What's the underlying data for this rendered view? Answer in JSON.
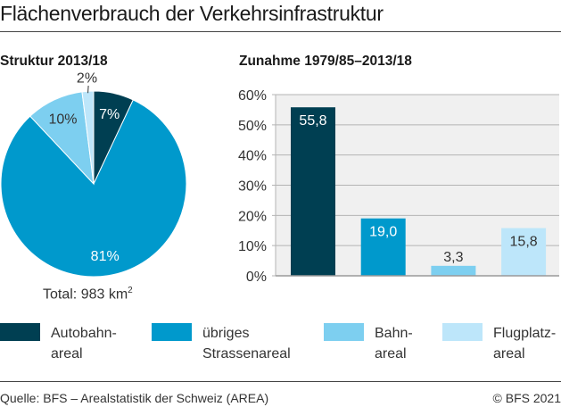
{
  "title": "Flächenverbrauch der Verkehrsinfrastruktur",
  "colors": {
    "autobahn": "#003f52",
    "strasse": "#0099cc",
    "bahn": "#7dcff0",
    "flugplatz": "#bde6fa",
    "plot_bg": "#f0f0f0",
    "grid": "#b4b4b4"
  },
  "chart_data": [
    {
      "type": "pie",
      "title": "Struktur 2013/18",
      "categories": [
        "Autobahnareal",
        "übriges Strassenareal",
        "Bahnareal",
        "Flugplatzareal"
      ],
      "values": [
        7,
        81,
        10,
        2
      ],
      "labels": [
        "7%",
        "81%",
        "10%",
        "2%"
      ],
      "note": "Total: 983 km",
      "note_sup": "2"
    },
    {
      "type": "bar",
      "title": "Zunahme 1979/85–2013/18",
      "categories": [
        "Autobahnareal",
        "übriges Strassenareal",
        "Bahnareal",
        "Flugplatzareal"
      ],
      "values": [
        55.8,
        19.0,
        3.3,
        15.8
      ],
      "labels": [
        "55,8",
        "19,0",
        "3,3",
        "15,8"
      ],
      "ylim": [
        0,
        60
      ],
      "yticks": [
        "0%",
        "10%",
        "20%",
        "30%",
        "40%",
        "50%",
        "60%"
      ],
      "grid": true
    }
  ],
  "legend": [
    {
      "line1": "Autobahn-",
      "line2": "areal"
    },
    {
      "line1": "übriges",
      "line2": "Strassenareal"
    },
    {
      "line1": "Bahn-",
      "line2": "areal"
    },
    {
      "line1": "Flugplatz-",
      "line2": "areal"
    }
  ],
  "footer": {
    "source": "Quelle: BFS – Arealstatistik der Schweiz (AREA)",
    "copyright": "© BFS 2021"
  }
}
